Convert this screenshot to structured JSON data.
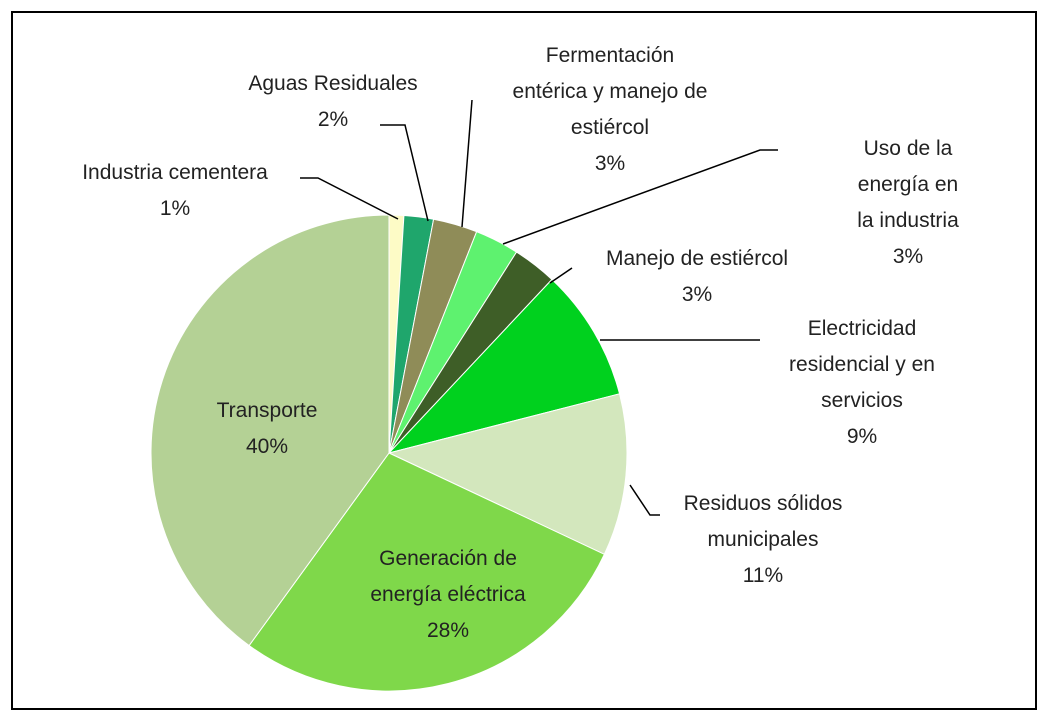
{
  "chart_data": {
    "type": "pie",
    "categories": [
      "Industria cementera",
      "Aguas Residuales",
      "Fermentación\nentérica y manejo de\nestiércol",
      "Uso de la energía en\nla industria",
      "Manejo de estiércol",
      "Electricidad\nresidencial y en\nservicios",
      "Residuos sólidos\nmunicipales",
      "Generación de\nenergía eléctrica",
      "Transporte"
    ],
    "values": [
      1,
      2,
      3,
      3,
      3,
      9,
      11,
      28,
      40
    ],
    "value_labels": [
      "1%",
      "2%",
      "3%",
      "3%",
      "3%",
      "9%",
      "11%",
      "28%",
      "40%"
    ],
    "colors": [
      "#fdfbc6",
      "#1fa66c",
      "#8f8c58",
      "#5ef26f",
      "#3e5e27",
      "#00d11e",
      "#d3e7bd",
      "#7fd84a",
      "#b4d195"
    ]
  }
}
